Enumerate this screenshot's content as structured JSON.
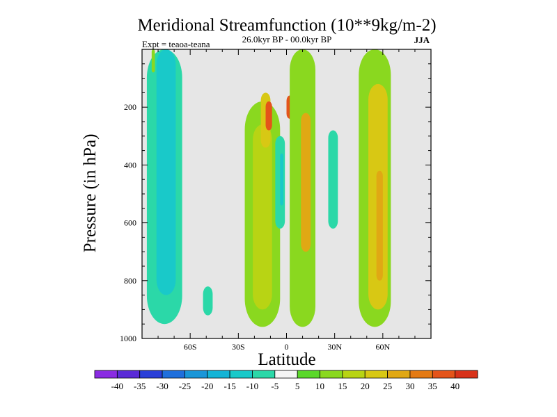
{
  "chart_data": {
    "type": "heatmap",
    "title": "Meridional Streamfunction (10**9kg/m-2)",
    "subtitle": "26.0kyr BP - 00.0kyr BP",
    "left_label": "Expt = teaoa-teana",
    "season": "JJA",
    "xlabel": "Latitude",
    "ylabel": "Pressure (in hPa)",
    "xlim": [
      -90,
      90
    ],
    "ylim": [
      1000,
      0
    ],
    "x_ticks": [
      {
        "value": -60,
        "label": "60S"
      },
      {
        "value": -30,
        "label": "30S"
      },
      {
        "value": 0,
        "label": "0"
      },
      {
        "value": 30,
        "label": "30N"
      },
      {
        "value": 60,
        "label": "60N"
      }
    ],
    "y_ticks": [
      {
        "value": 200,
        "label": "200"
      },
      {
        "value": 400,
        "label": "400"
      },
      {
        "value": 600,
        "label": "600"
      },
      {
        "value": 800,
        "label": "800"
      },
      {
        "value": 1000,
        "label": "1000"
      }
    ],
    "missing_color": "#e6e6e6",
    "levels": [
      -40,
      -35,
      -30,
      -25,
      -20,
      -15,
      -10,
      -5,
      5,
      10,
      15,
      20,
      25,
      30,
      35,
      40
    ],
    "level_labels": [
      "-40",
      "-35",
      "-30",
      "-25",
      "-20",
      "-15",
      "-10",
      "-5",
      "5",
      "10",
      "15",
      "20",
      "25",
      "30",
      "35",
      "40"
    ],
    "colors": [
      "#8a2be2",
      "#5a2ad6",
      "#2a3fd8",
      "#1f6fdc",
      "#1a96d8",
      "#14b4d6",
      "#19c9c9",
      "#2bd8a8",
      "#f5f5f5",
      "#5ad82a",
      "#8ad81f",
      "#b8d414",
      "#d8c814",
      "#e0a814",
      "#e47a14",
      "#e4541a",
      "#d8321a"
    ],
    "blobs": [
      {
        "name": "sh-polar-negative-cell",
        "level": -10,
        "lat": -76,
        "p": [
          0,
          950
        ],
        "w": 11
      },
      {
        "name": "sh-polar-negative-core",
        "level": -15,
        "lat": -75,
        "p": [
          0,
          850
        ],
        "w": 6
      },
      {
        "name": "sh-subtropic-negative-patch",
        "level": -10,
        "lat": -49,
        "p": [
          820,
          920
        ],
        "w": 3
      },
      {
        "name": "nh-polar-weak-positive",
        "level": 10,
        "lat": -83,
        "p": [
          0,
          80
        ],
        "w": 1
      },
      {
        "name": "sh-hadley-positive-cell",
        "level": 10,
        "lat": -15,
        "p": [
          180,
          960
        ],
        "w": 11
      },
      {
        "name": "sh-hadley-positive-inner",
        "level": 15,
        "lat": -15,
        "p": [
          260,
          900
        ],
        "w": 6
      },
      {
        "name": "sh-hadley-positive-core",
        "level": 20,
        "lat": -13,
        "p": [
          150,
          340
        ],
        "w": 3
      },
      {
        "name": "upper-jet-west",
        "level": 35,
        "lat": -11,
        "p": [
          180,
          280
        ],
        "w": 2
      },
      {
        "name": "upper-jet-east",
        "level": 35,
        "lat": 2,
        "p": [
          160,
          240
        ],
        "w": 2
      },
      {
        "name": "equatorial-negative-cell",
        "level": -10,
        "lat": -4,
        "p": [
          300,
          620
        ],
        "w": 3
      },
      {
        "name": "equatorial-negative-core",
        "level": -15,
        "lat": -3,
        "p": [
          360,
          540
        ],
        "w": 1
      },
      {
        "name": "nh-hadley-positive-cell",
        "level": 10,
        "lat": 10,
        "p": [
          0,
          960
        ],
        "w": 8
      },
      {
        "name": "nh-hadley-positive-core",
        "level": 25,
        "lat": 12,
        "p": [
          220,
          700
        ],
        "w": 3
      },
      {
        "name": "nh-tropic-negative-strip",
        "level": -10,
        "lat": 29,
        "p": [
          280,
          620
        ],
        "w": 3
      },
      {
        "name": "nh-midlat-positive-cell",
        "level": 10,
        "lat": 55,
        "p": [
          0,
          960
        ],
        "w": 10
      },
      {
        "name": "nh-midlat-positive-inner",
        "level": 20,
        "lat": 57,
        "p": [
          120,
          900
        ],
        "w": 6
      },
      {
        "name": "nh-midlat-positive-core",
        "level": 25,
        "lat": 58,
        "p": [
          420,
          800
        ],
        "w": 2
      }
    ]
  }
}
